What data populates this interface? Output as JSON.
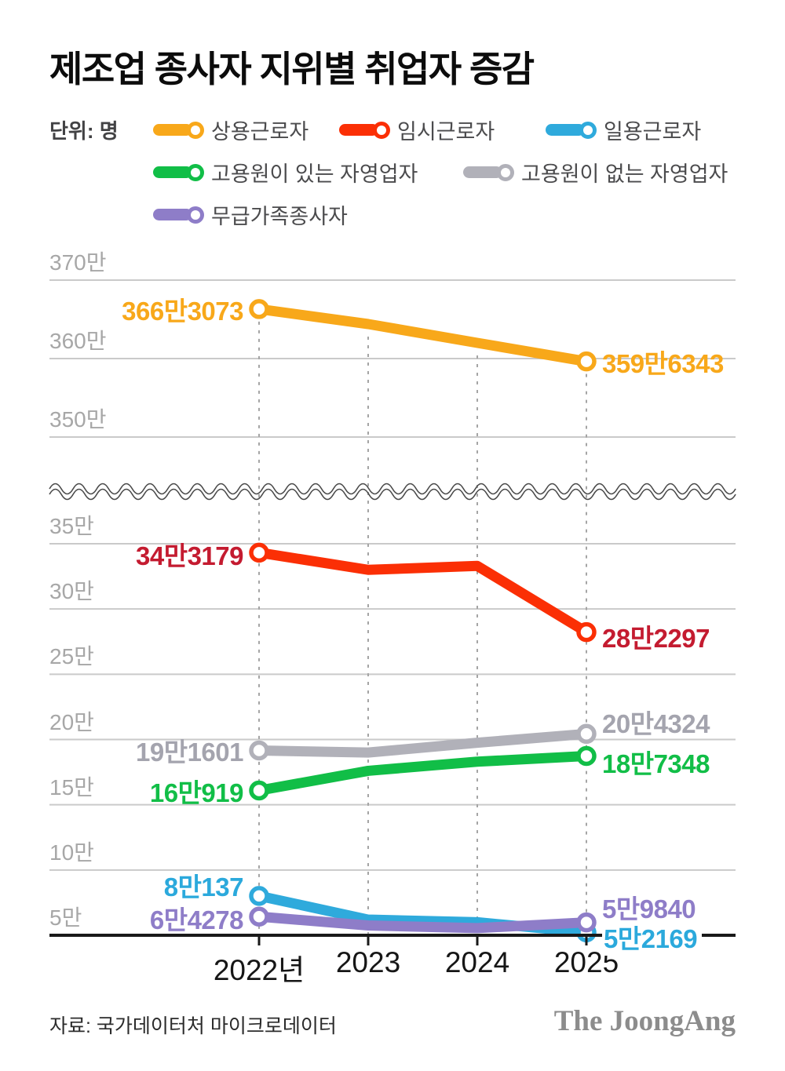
{
  "title": "제조업 종사자 지위별 취업자 증감",
  "unit_label": "단위: 명",
  "source": "자료: 국가데이터처 마이크로데이터",
  "brand": "The JoongAng",
  "colors": {
    "grid": "#cacaca",
    "dashed_guide": "#a5a5a5",
    "axis": "#191919",
    "axis_break_wave": "#4a4a4a",
    "y_tick_text": "#a7a7a7",
    "x_tick_text": "#161616",
    "legend_text": "#4b4b4d"
  },
  "chart_data": {
    "type": "line",
    "title": "제조업 종사자 지위별 취업자 증감",
    "unit": "명",
    "x_labels": [
      "2022년",
      "2023",
      "2024",
      "2025"
    ],
    "x_values": [
      2022,
      2023,
      2024,
      2025
    ],
    "grid": true,
    "axis_break": true,
    "y_ticks_upper": [
      {
        "label": "370만",
        "value": 3700000
      },
      {
        "label": "360만",
        "value": 3600000
      },
      {
        "label": "350만",
        "value": 3500000
      }
    ],
    "y_ticks_lower": [
      {
        "label": "35만",
        "value": 350000
      },
      {
        "label": "30만",
        "value": 300000
      },
      {
        "label": "25만",
        "value": 250000
      },
      {
        "label": "20만",
        "value": 200000
      },
      {
        "label": "15만",
        "value": 150000
      },
      {
        "label": "10만",
        "value": 100000
      },
      {
        "label": "5만",
        "value": 50000
      }
    ],
    "series": [
      {
        "key": "regular-workers",
        "name": "상용근로자",
        "panel": "upper",
        "color": "#f8a81a",
        "label_color": "#f8a81a",
        "values": [
          3663073,
          3644000,
          3620000,
          3596343
        ],
        "start_label": "366만3073",
        "end_label": "359만6343"
      },
      {
        "key": "temporary-workers",
        "name": "임시근로자",
        "panel": "lower",
        "color": "#fb2f05",
        "label_color": "#c41b30",
        "values": [
          343179,
          330000,
          333000,
          282297
        ],
        "start_label": "34만3179",
        "end_label": "28만2297"
      },
      {
        "key": "daily-workers",
        "name": "일용근로자",
        "panel": "lower",
        "color": "#2faadc",
        "label_color": "#2ba9dc",
        "values": [
          80137,
          62000,
          60000,
          52169
        ],
        "start_label": "8만137",
        "end_label": "5만2169"
      },
      {
        "key": "self-employed-with-employees",
        "name": "고용원이 있는 자영업자",
        "panel": "lower",
        "color": "#11be47",
        "label_color": "#11be47",
        "values": [
          160919,
          176000,
          183000,
          187348
        ],
        "start_label": "16만919",
        "end_label": "18만7348"
      },
      {
        "key": "self-employed-without-employees",
        "name": "고용원이 없는 자영업자",
        "panel": "lower",
        "color": "#b1b1b9",
        "label_color": "#a4a4ae",
        "values": [
          191601,
          190000,
          197500,
          204324
        ],
        "start_label": "19만1601",
        "end_label": "20만4324"
      },
      {
        "key": "unpaid-family-workers",
        "name": "무급가족종사자",
        "panel": "lower",
        "color": "#8e7dc8",
        "label_color": "#8e7dc8",
        "values": [
          64278,
          57500,
          55500,
          59840
        ],
        "start_label": "6만4278",
        "end_label": "5만9840"
      }
    ]
  }
}
